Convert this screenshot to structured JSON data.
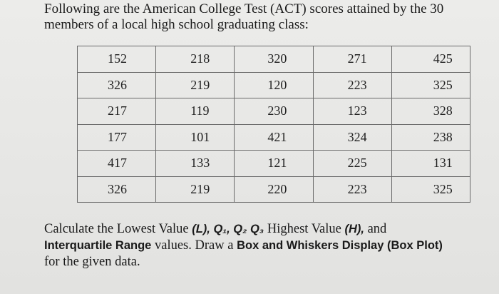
{
  "intro_text": "Following are the American College Test (ACT) scores attained by the 30 members of a local high school graduating class:",
  "table": {
    "rows": [
      [
        "152",
        "218",
        "320",
        "271",
        "425"
      ],
      [
        "326",
        "219",
        "120",
        "223",
        "325"
      ],
      [
        "217",
        "119",
        "230",
        "123",
        "328"
      ],
      [
        "177",
        "101",
        "421",
        "324",
        "238"
      ],
      [
        "417",
        "133",
        "121",
        "225",
        "131"
      ],
      [
        "326",
        "219",
        "220",
        "223",
        "325"
      ]
    ]
  },
  "question": {
    "part1": "Calculate the Lowest Value ",
    "lowest_label": "(L), Q₁, Q₂ Q₃",
    "part2": " Highest Value ",
    "highest_label": "(H),",
    "part3": " and ",
    "iqr_label": "Interquartile Range",
    "part4": " values. Draw a ",
    "box_label": "Box and Whiskers Display (Box Plot)",
    "part5": " for the given data."
  }
}
